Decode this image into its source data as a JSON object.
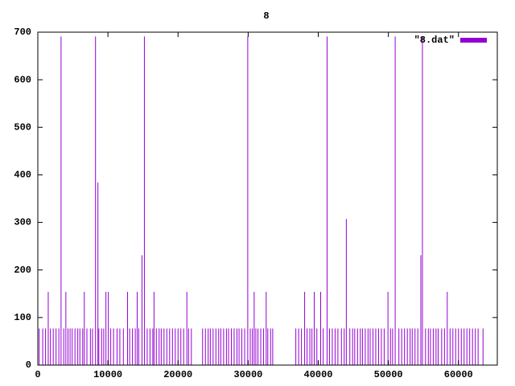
{
  "chart_data": {
    "type": "impulses",
    "title": "8",
    "x": [
      200,
      700,
      1100,
      1800,
      2200,
      2600,
      3000,
      3700,
      4300,
      4600,
      4900,
      5300,
      5700,
      6000,
      6400,
      7000,
      7500,
      7800,
      8700,
      9100,
      9400,
      10400,
      10800,
      11300,
      11700,
      12200,
      13100,
      13500,
      13900,
      14400,
      15600,
      16000,
      16400,
      16900,
      17300,
      17600,
      18000,
      18400,
      18800,
      19200,
      19600,
      20000,
      20400,
      20800,
      21500,
      21900,
      23500,
      23900,
      24300,
      24600,
      25000,
      25400,
      25800,
      26100,
      26500,
      26900,
      27200,
      27600,
      28000,
      28400,
      28700,
      29100,
      29500,
      30300,
      30600,
      31100,
      31400,
      31800,
      32200,
      32800,
      33200,
      33500,
      36800,
      37200,
      37600,
      38400,
      38800,
      39100,
      39800,
      40700,
      41600,
      42000,
      42400,
      42800,
      43300,
      43700,
      44500,
      44900,
      45200,
      45600,
      46000,
      46300,
      46700,
      47100,
      47400,
      47800,
      48200,
      48600,
      49000,
      49400,
      50300,
      50600,
      51500,
      51900,
      52300,
      52700,
      53100,
      53400,
      53800,
      54200,
      55300,
      55700,
      56000,
      56400,
      56800,
      57100,
      57600,
      58000,
      58800,
      59200,
      59600,
      60000,
      60400,
      60800,
      61200,
      61600,
      62000,
      62400,
      62800,
      63500,
      3314,
      8229,
      15200,
      29943,
      41257,
      50971,
      54857,
      8571,
      44000,
      14857,
      54629,
      1486,
      4000,
      6629,
      9714,
      10057,
      12800,
      14171,
      16571,
      21257,
      30857,
      32571,
      38057,
      39429,
      40343,
      49943,
      58400
    ],
    "series": [
      {
        "name": "\"8.dat\"",
        "color": "#9400d3",
        "values": [
          77,
          77,
          77,
          77,
          77,
          77,
          77,
          77,
          77,
          77,
          77,
          77,
          77,
          77,
          77,
          77,
          77,
          77,
          77,
          77,
          77,
          77,
          77,
          77,
          77,
          77,
          77,
          77,
          77,
          77,
          77,
          77,
          77,
          77,
          77,
          77,
          77,
          77,
          77,
          77,
          77,
          77,
          77,
          77,
          77,
          77,
          77,
          77,
          77,
          77,
          77,
          77,
          77,
          77,
          77,
          77,
          77,
          77,
          77,
          77,
          77,
          77,
          77,
          77,
          77,
          77,
          77,
          77,
          77,
          77,
          77,
          77,
          77,
          77,
          77,
          77,
          77,
          77,
          77,
          77,
          77,
          77,
          77,
          77,
          77,
          77,
          77,
          77,
          77,
          77,
          77,
          77,
          77,
          77,
          77,
          77,
          77,
          77,
          77,
          77,
          77,
          77,
          77,
          77,
          77,
          77,
          77,
          77,
          77,
          77,
          77,
          77,
          77,
          77,
          77,
          77,
          77,
          77,
          77,
          77,
          77,
          77,
          77,
          77,
          77,
          77,
          77,
          77,
          77,
          77,
          691,
          691,
          691,
          691,
          691,
          691,
          691,
          384,
          307,
          231,
          231,
          154,
          154,
          154,
          154,
          154,
          154,
          154,
          154,
          154,
          154,
          154,
          154,
          154,
          154,
          154,
          154
        ]
      }
    ],
    "xlim": [
      0,
      65536
    ],
    "ylim": [
      0,
      700
    ],
    "xticks": [
      0,
      10000,
      20000,
      30000,
      40000,
      50000,
      60000
    ],
    "yticks": [
      0,
      100,
      200,
      300,
      400,
      500,
      600,
      700
    ],
    "legend": "top-right"
  }
}
